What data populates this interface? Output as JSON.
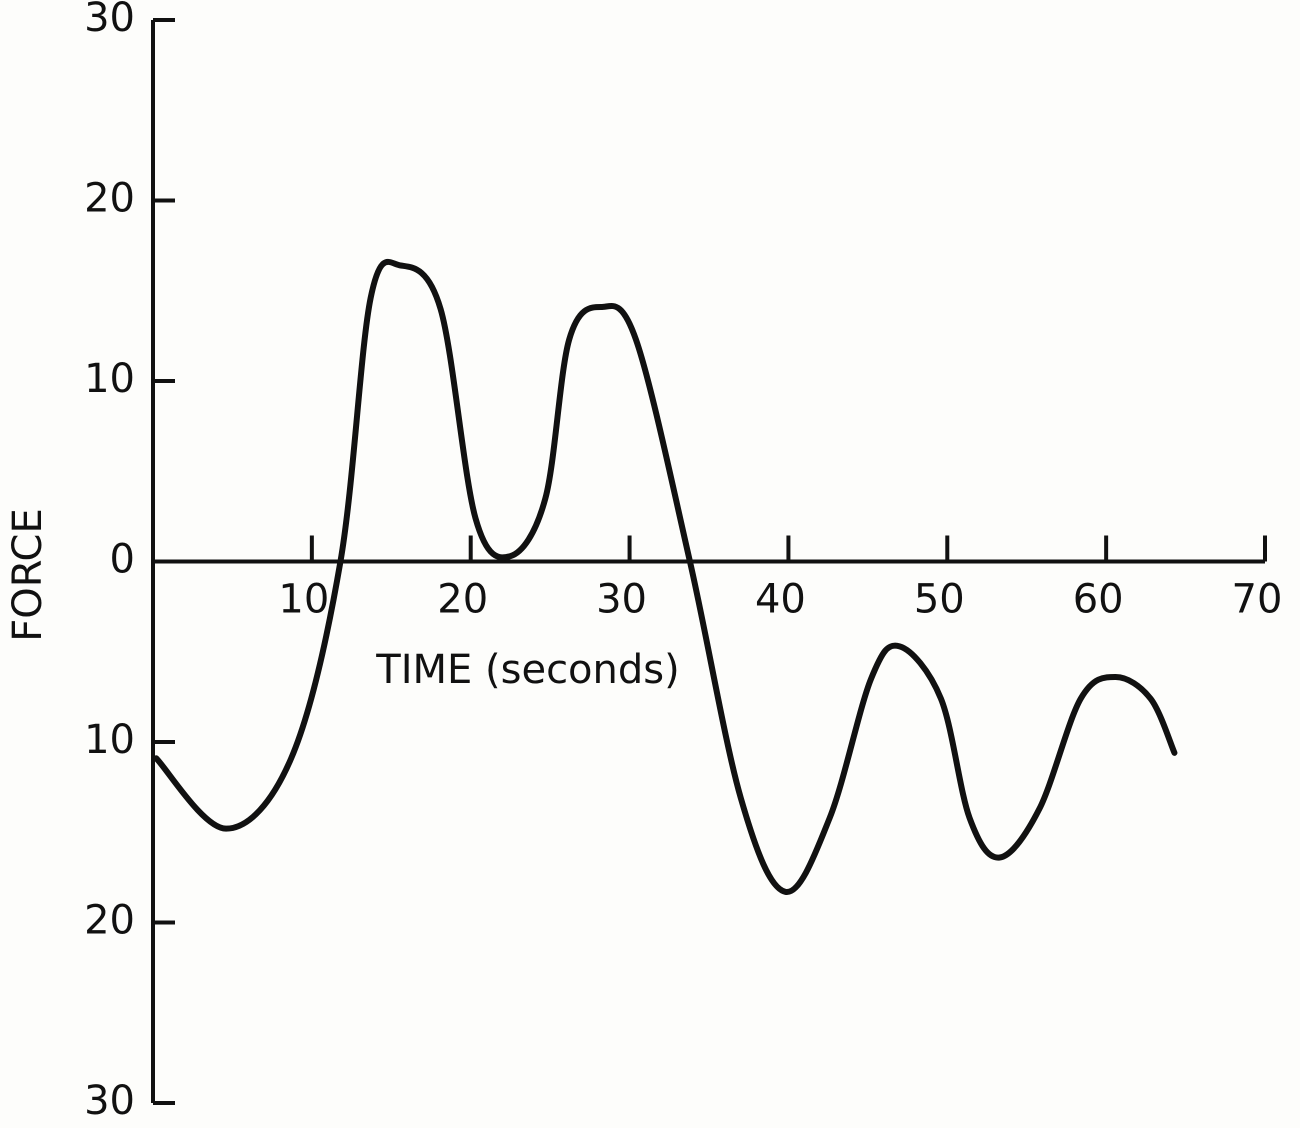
{
  "chart_data": {
    "type": "line",
    "xlabel": "TIME (seconds)",
    "ylabel": "FORCE",
    "x": [
      0.2,
      4.6,
      8.7,
      11.8,
      13.7,
      15.6,
      18.1,
      20.3,
      22.5,
      24.7,
      26.2,
      28.2,
      30.4,
      33.8,
      37,
      39.8,
      42.6,
      45.2,
      47,
      49.6,
      51.4,
      53.3,
      55.8,
      58.4,
      60.6,
      62.8,
      64.3
    ],
    "values": [
      -10.9,
      -14.8,
      -10.9,
      0,
      14.6,
      16.4,
      14,
      2.4,
      0.3,
      3.5,
      12.3,
      14.1,
      12.3,
      0,
      -13.1,
      -18.3,
      -14.2,
      -6.5,
      -4.7,
      -7.6,
      -14.2,
      -16.4,
      -13.7,
      -7.6,
      -6.4,
      -7.6,
      -10.6
    ],
    "color": "#111111",
    "xlim": [
      0,
      70
    ],
    "xticks": [
      10,
      20,
      30,
      40,
      50,
      60,
      70
    ],
    "ylim": [
      -30,
      30
    ],
    "yticks": [
      30,
      20,
      10,
      0,
      {
        "value": -10,
        "label": "10"
      },
      {
        "value": -20,
        "label": "20"
      },
      {
        "value": -30,
        "label": "30"
      }
    ],
    "grid": false
  }
}
